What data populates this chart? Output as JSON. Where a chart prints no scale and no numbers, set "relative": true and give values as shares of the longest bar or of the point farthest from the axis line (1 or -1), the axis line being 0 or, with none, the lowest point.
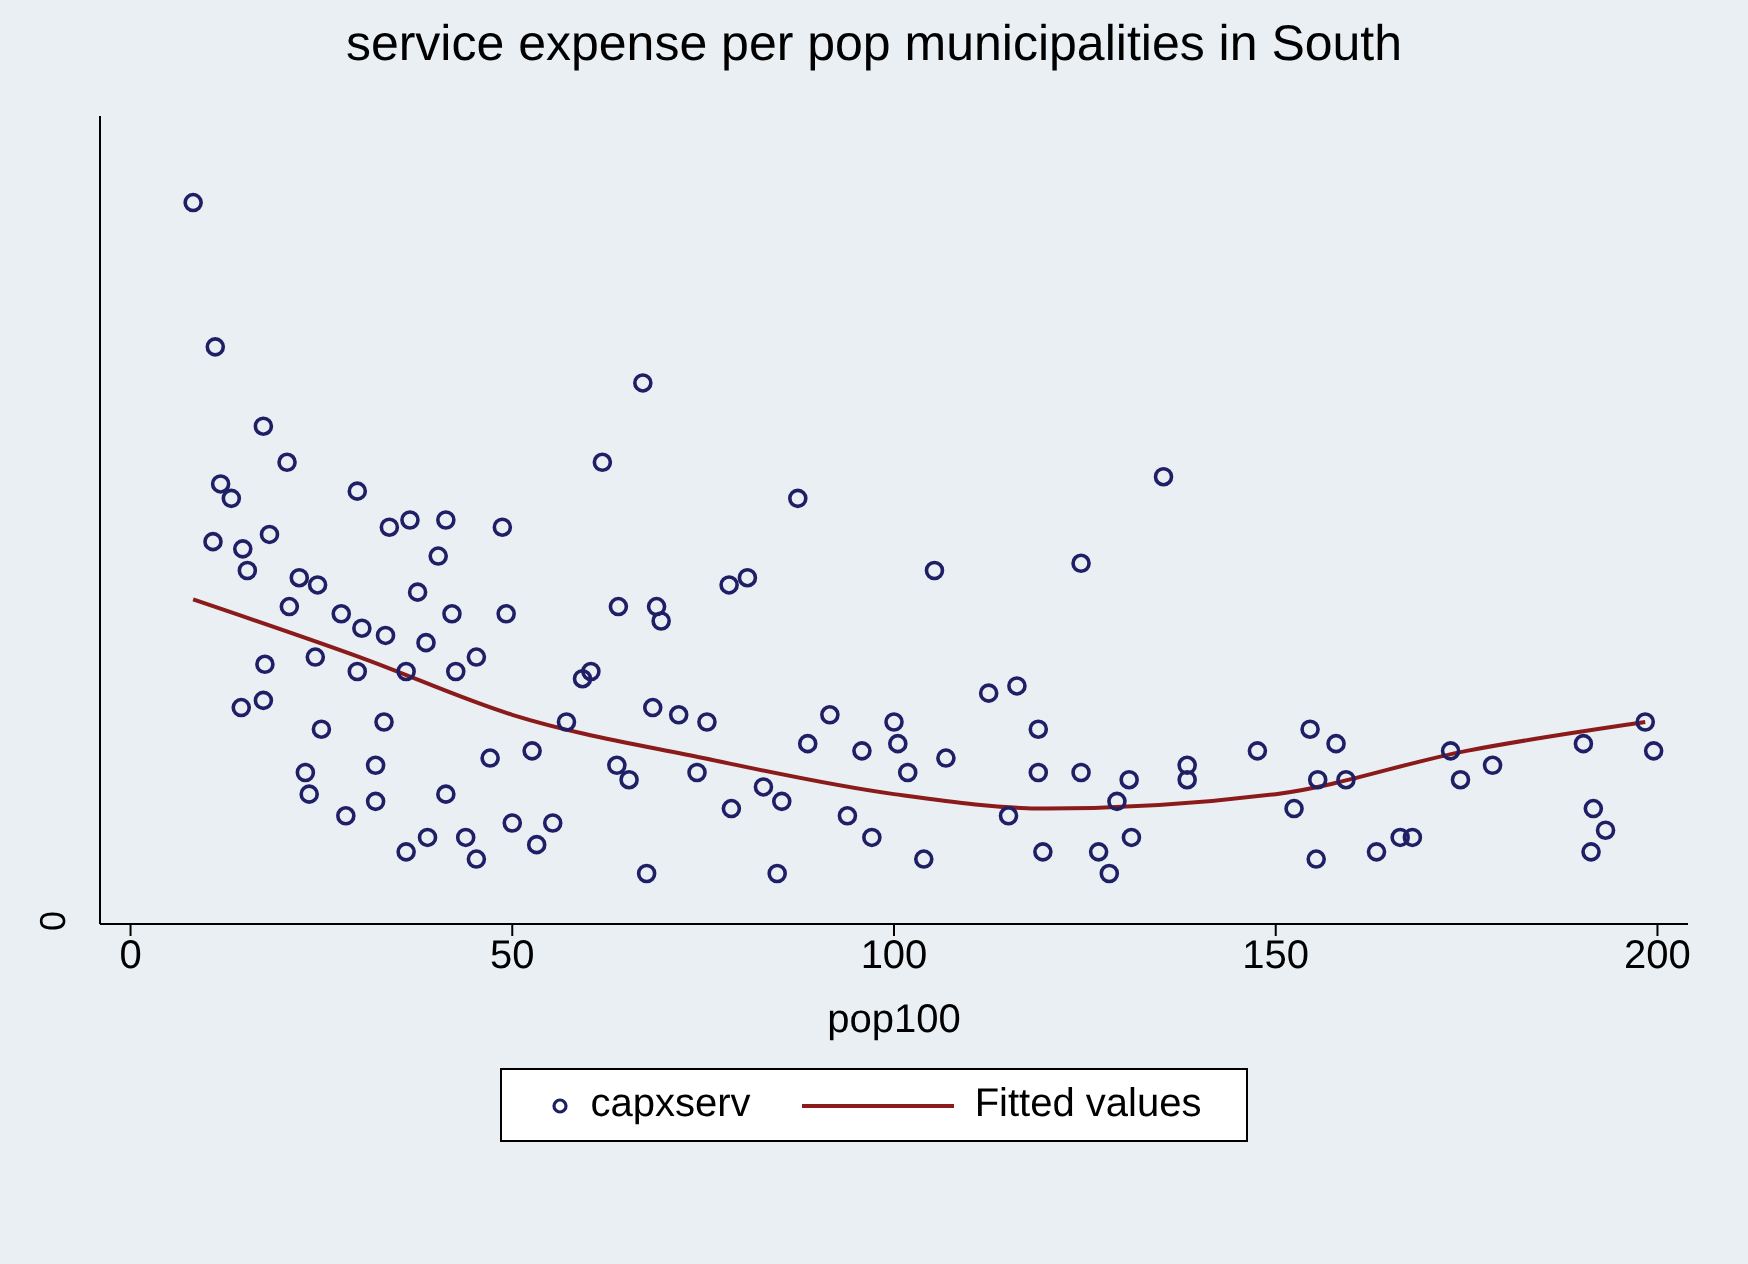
{
  "chart_data": {
    "type": "scatter",
    "title": "service expense per pop municipalities in South",
    "xlabel": "pop100",
    "relative": true,
    "xlim": [
      -4,
      204
    ],
    "xticks": [
      0,
      50,
      100,
      150,
      200
    ],
    "annotations": [
      "0"
    ],
    "grid": false,
    "legend": "bottom",
    "series": [
      {
        "name": "capxserv",
        "marker": "circle",
        "color": "#1f1f66",
        "x": [
          8.2,
          11.1,
          17.4,
          20.5,
          29.7,
          11.8,
          13.2,
          10.8,
          14.7,
          18.2,
          15.3,
          20.8,
          14.5,
          17.4,
          22.1,
          24.5,
          27.6,
          33.9,
          36.6,
          41.3,
          48.7,
          40.3,
          37.6,
          42.1,
          49.2,
          30.3,
          33.4,
          17.6,
          24.2,
          29.7,
          33.2,
          36.1,
          38.7,
          42.6,
          45.3,
          25.0,
          22.9,
          28.2,
          23.4,
          32.1,
          36.1,
          38.9,
          32.1,
          41.3,
          43.9,
          45.3,
          50.0,
          47.1,
          52.6,
          57.1,
          55.3,
          53.2,
          59.2,
          60.3,
          61.8,
          67.1,
          63.9,
          68.9,
          69.5,
          63.7,
          68.4,
          65.3,
          67.6,
          71.8,
          75.5,
          78.4,
          80.8,
          87.4,
          85.3,
          84.7,
          74.2,
          78.7,
          82.9,
          91.6,
          88.7,
          95.8,
          100.0,
          100.5,
          101.8,
          105.3,
          106.8,
          93.9,
          97.1,
          103.9,
          112.4,
          116.1,
          118.9,
          118.9,
          115.0,
          119.5,
          124.5,
          135.3,
          124.5,
          128.2,
          126.8,
          130.8,
          129.2,
          131.1,
          138.4,
          138.4,
          147.6,
          152.4,
          154.5,
          155.5,
          157.9,
          159.2,
          155.3,
          163.2,
          166.3,
          167.9,
          172.9,
          174.2,
          178.4,
          190.3,
          191.6,
          193.2,
          191.3,
          198.4,
          199.5
        ],
        "values": [
          1.0,
          0.8,
          0.69,
          0.64,
          0.6,
          0.61,
          0.59,
          0.53,
          0.52,
          0.54,
          0.49,
          0.44,
          0.3,
          0.31,
          0.48,
          0.47,
          0.43,
          0.55,
          0.56,
          0.56,
          0.55,
          0.51,
          0.46,
          0.43,
          0.43,
          0.41,
          0.4,
          0.36,
          0.37,
          0.35,
          0.28,
          0.35,
          0.39,
          0.35,
          0.37,
          0.27,
          0.21,
          0.15,
          0.18,
          0.17,
          0.1,
          0.12,
          0.22,
          0.18,
          0.12,
          0.09,
          0.14,
          0.23,
          0.24,
          0.28,
          0.14,
          0.11,
          0.34,
          0.35,
          0.64,
          0.75,
          0.44,
          0.44,
          0.42,
          0.22,
          0.3,
          0.2,
          0.07,
          0.29,
          0.28,
          0.47,
          0.48,
          0.59,
          0.17,
          0.07,
          0.21,
          0.16,
          0.19,
          0.29,
          0.25,
          0.24,
          0.28,
          0.25,
          0.21,
          0.49,
          0.23,
          0.15,
          0.12,
          0.09,
          0.32,
          0.33,
          0.27,
          0.21,
          0.15,
          0.1,
          0.5,
          0.62,
          0.21,
          0.07,
          0.1,
          0.2,
          0.17,
          0.12,
          0.22,
          0.2,
          0.24,
          0.16,
          0.27,
          0.2,
          0.25,
          0.2,
          0.09,
          0.1,
          0.12,
          0.12,
          0.24,
          0.2,
          0.22,
          0.25,
          0.16,
          0.13,
          0.1,
          0.28,
          0.24
        ]
      },
      {
        "name": "Fitted values",
        "type": "line",
        "marker": "none",
        "color": "#8b1a1a",
        "x": [
          8.2,
          30,
          50,
          75,
          100,
          120,
          150,
          175,
          198.4
        ],
        "values": [
          0.45,
          0.37,
          0.29,
          0.23,
          0.18,
          0.16,
          0.18,
          0.24,
          0.28
        ]
      }
    ]
  }
}
